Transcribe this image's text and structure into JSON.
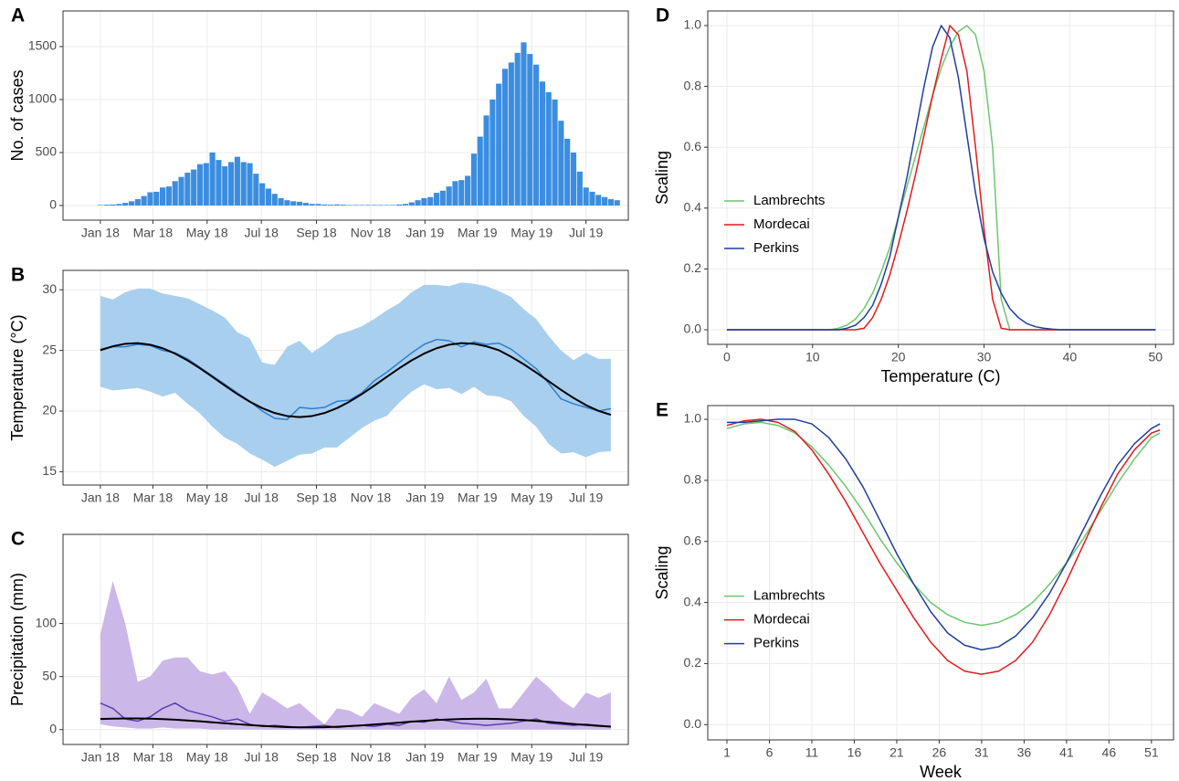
{
  "chart_data": [
    {
      "type": "bar",
      "label": "A",
      "ylabel": "No. of cases",
      "color": "#3b8de0",
      "grid": true,
      "x": [
        0,
        1,
        2,
        3,
        4,
        5,
        6,
        7,
        8,
        9,
        10,
        11,
        12,
        13,
        14,
        15,
        16,
        17,
        18,
        19,
        20,
        21,
        22,
        23,
        24,
        25,
        26,
        27,
        28,
        29,
        30,
        31,
        32,
        33,
        34,
        35,
        36,
        37,
        38,
        39,
        40,
        41,
        42,
        43,
        44,
        45,
        46,
        47,
        48,
        49,
        50,
        51,
        52,
        53,
        54,
        55,
        56,
        57,
        58,
        59,
        60,
        61,
        62,
        63,
        64,
        65,
        66,
        67,
        68,
        69,
        70,
        71,
        72,
        73,
        74,
        75,
        76,
        77,
        78,
        79,
        80,
        81,
        82,
        83
      ],
      "values": [
        5,
        8,
        10,
        15,
        25,
        40,
        60,
        90,
        125,
        130,
        170,
        180,
        230,
        270,
        310,
        340,
        390,
        400,
        500,
        430,
        370,
        410,
        460,
        410,
        400,
        300,
        210,
        160,
        110,
        70,
        50,
        40,
        35,
        25,
        15,
        15,
        10,
        8,
        10,
        8,
        5,
        5,
        5,
        5,
        5,
        5,
        5,
        5,
        10,
        15,
        30,
        50,
        70,
        80,
        120,
        140,
        180,
        230,
        240,
        280,
        490,
        650,
        850,
        1000,
        1150,
        1290,
        1350,
        1440,
        1540,
        1430,
        1330,
        1170,
        1070,
        1000,
        800,
        630,
        500,
        320,
        170,
        130,
        100,
        80,
        60,
        50
      ],
      "xlim": [
        -6,
        84.8
      ],
      "xticks": [
        {
          "value": 0,
          "label": "Jan 18"
        },
        {
          "value": 8.43,
          "label": "Mar 18"
        },
        {
          "value": 17.14,
          "label": "May 18"
        },
        {
          "value": 25.86,
          "label": "Jul 18"
        },
        {
          "value": 34.71,
          "label": "Sep 18"
        },
        {
          "value": 43.43,
          "label": "Nov 18"
        },
        {
          "value": 52.14,
          "label": "Jan 19"
        },
        {
          "value": 60.57,
          "label": "Mar 19"
        },
        {
          "value": 69.29,
          "label": "May 19"
        },
        {
          "value": 78,
          "label": "Jul 19"
        }
      ],
      "ylim": [
        -138,
        1836
      ],
      "yticks": [
        0,
        500,
        1000,
        1500
      ]
    },
    {
      "type": "line",
      "label": "B",
      "ylabel": "Temperature (°C)",
      "grid": true,
      "x": [
        0,
        2,
        4,
        6,
        8,
        10,
        12,
        14,
        16,
        18,
        20,
        22,
        24,
        26,
        28,
        30,
        32,
        34,
        36,
        38,
        40,
        42,
        44,
        46,
        48,
        50,
        52,
        54,
        56,
        58,
        60,
        62,
        64,
        66,
        68,
        70,
        72,
        74,
        76,
        78,
        80,
        82
      ],
      "band": {
        "color": "#a9cfef",
        "upper": [
          29.5,
          29.2,
          29.8,
          30.1,
          30.1,
          29.7,
          29.5,
          29.3,
          28.8,
          28.3,
          27.7,
          26.5,
          26.0,
          24.0,
          23.8,
          25.3,
          25.8,
          24.8,
          25.5,
          26.3,
          26.6,
          27.0,
          27.6,
          28.3,
          28.9,
          29.8,
          30.4,
          30.4,
          30.3,
          30.6,
          30.5,
          30.3,
          29.9,
          29.4,
          28.4,
          27.6,
          26.2,
          25.0,
          24.2,
          24.8,
          24.3,
          24.3
        ],
        "lower": [
          22.0,
          21.7,
          21.8,
          21.9,
          21.6,
          21.2,
          21.5,
          20.6,
          19.8,
          18.7,
          17.8,
          17.3,
          16.5,
          16.0,
          15.4,
          15.9,
          16.4,
          16.5,
          17.0,
          17.0,
          17.8,
          18.6,
          19.2,
          19.6,
          20.7,
          21.6,
          22.2,
          21.8,
          21.9,
          21.4,
          22.0,
          21.3,
          21.2,
          20.8,
          19.6,
          18.7,
          17.3,
          16.5,
          16.6,
          16.2,
          16.6,
          16.7
        ]
      },
      "series": [
        {
          "color": "#2f7fd0",
          "values": [
            25.1,
            25.3,
            25.3,
            25.5,
            25.4,
            25.0,
            24.8,
            24.3,
            23.6,
            22.9,
            22.2,
            21.5,
            20.8,
            20.0,
            19.4,
            19.3,
            20.3,
            20.2,
            20.3,
            20.8,
            20.9,
            21.5,
            22.5,
            23.2,
            24.0,
            24.8,
            25.5,
            25.9,
            25.8,
            25.3,
            25.7,
            25.5,
            25.6,
            25.1,
            24.3,
            23.5,
            22.3,
            21.0,
            20.6,
            20.3,
            20.0,
            20.2
          ]
        },
        {
          "color": "#000000",
          "values": [
            25.02,
            25.34,
            25.55,
            25.6,
            25.47,
            25.18,
            24.74,
            24.18,
            23.53,
            22.82,
            22.1,
            21.4,
            20.77,
            20.24,
            19.84,
            19.59,
            19.5,
            19.59,
            19.84,
            20.24,
            20.77,
            21.4,
            22.1,
            22.82,
            23.53,
            24.18,
            24.74,
            25.18,
            25.47,
            25.6,
            25.55,
            25.34,
            25.02,
            24.47,
            23.86,
            23.18,
            22.46,
            21.75,
            21.08,
            20.49,
            20.02,
            19.69
          ]
        }
      ],
      "xlim": [
        -6,
        84.8
      ],
      "xticks": [
        {
          "value": 0,
          "label": "Jan 18"
        },
        {
          "value": 8.43,
          "label": "Mar 18"
        },
        {
          "value": 17.14,
          "label": "May 18"
        },
        {
          "value": 25.86,
          "label": "Jul 18"
        },
        {
          "value": 34.71,
          "label": "Sep 18"
        },
        {
          "value": 43.43,
          "label": "Nov 18"
        },
        {
          "value": 52.14,
          "label": "Jan 19"
        },
        {
          "value": 60.57,
          "label": "Mar 19"
        },
        {
          "value": 69.29,
          "label": "May 19"
        },
        {
          "value": 78,
          "label": "Jul 19"
        }
      ],
      "ylim": [
        13.9,
        31.6
      ],
      "yticks": [
        15,
        20,
        25,
        30
      ]
    },
    {
      "type": "line",
      "label": "C",
      "ylabel": "Precipitation (mm)",
      "grid": true,
      "x": [
        0,
        2,
        4,
        6,
        8,
        10,
        12,
        14,
        16,
        18,
        20,
        22,
        24,
        26,
        28,
        30,
        32,
        34,
        36,
        38,
        40,
        42,
        44,
        46,
        48,
        50,
        52,
        54,
        56,
        58,
        60,
        62,
        64,
        66,
        68,
        70,
        72,
        74,
        76,
        78,
        80,
        82
      ],
      "band": {
        "color": "#cbb8e8",
        "upper": [
          90,
          140,
          100,
          45,
          50,
          65,
          68,
          68,
          55,
          52,
          55,
          40,
          15,
          35,
          28,
          20,
          25,
          15,
          5,
          20,
          18,
          12,
          25,
          20,
          15,
          30,
          38,
          25,
          50,
          28,
          35,
          48,
          20,
          20,
          35,
          50,
          40,
          28,
          20,
          35,
          30,
          35
        ],
        "lower": [
          5,
          3,
          2,
          1,
          1,
          2,
          1,
          1,
          1,
          0,
          0,
          0,
          0,
          0,
          0,
          0,
          0,
          0,
          0,
          0,
          0,
          0,
          0,
          0,
          0,
          0,
          0,
          0,
          0,
          0,
          0,
          0,
          0,
          0,
          0,
          0,
          0,
          0,
          0,
          0,
          0,
          0
        ]
      },
      "series": [
        {
          "color": "#5a3fb0",
          "values": [
            25,
            20,
            10,
            8,
            12,
            20,
            25,
            18,
            15,
            12,
            8,
            10,
            5,
            3,
            4,
            3,
            2,
            3,
            4,
            2,
            3,
            4,
            3,
            5,
            4,
            8,
            7,
            10,
            8,
            6,
            5,
            4,
            5,
            6,
            8,
            10,
            6,
            5,
            4,
            5,
            4,
            3
          ]
        },
        {
          "color": "#000000",
          "values": [
            10.0,
            10.3,
            10.5,
            10.5,
            10.3,
            9.9,
            9.3,
            8.6,
            7.8,
            6.9,
            6.0,
            5.1,
            4.3,
            3.5,
            2.9,
            2.4,
            2.1,
            2.1,
            2.3,
            2.7,
            3.3,
            4.0,
            4.8,
            5.7,
            6.6,
            7.5,
            8.3,
            9.0,
            9.6,
            10.0,
            10.2,
            10.2,
            10.0,
            9.6,
            9.0,
            8.2,
            7.3,
            6.3,
            5.3,
            4.4,
            3.5,
            2.8
          ]
        }
      ],
      "xlim": [
        -6,
        84.8
      ],
      "xticks": [
        {
          "value": 0,
          "label": "Jan 18"
        },
        {
          "value": 8.43,
          "label": "Mar 18"
        },
        {
          "value": 17.14,
          "label": "May 18"
        },
        {
          "value": 25.86,
          "label": "Jul 18"
        },
        {
          "value": 34.71,
          "label": "Sep 18"
        },
        {
          "value": 43.43,
          "label": "Nov 18"
        },
        {
          "value": 52.14,
          "label": "Jan 19"
        },
        {
          "value": 60.57,
          "label": "Mar 19"
        },
        {
          "value": 69.29,
          "label": "May 19"
        },
        {
          "value": 78,
          "label": "Jul 19"
        }
      ],
      "ylim": [
        -14,
        184
      ],
      "yticks": [
        0,
        50,
        100
      ]
    },
    {
      "type": "line",
      "label": "D",
      "xlabel": "Temperature (C)",
      "ylabel": "Scaling",
      "grid": true,
      "legend": "center left",
      "x": [
        0,
        1,
        2,
        3,
        4,
        5,
        6,
        7,
        8,
        9,
        10,
        11,
        12,
        13,
        14,
        15,
        16,
        17,
        18,
        19,
        20,
        21,
        22,
        23,
        24,
        25,
        26,
        27,
        28,
        29,
        30,
        31,
        32,
        33,
        34,
        35,
        36,
        37,
        38,
        39,
        40,
        41,
        42,
        43,
        44,
        45,
        46,
        47,
        48,
        49,
        50
      ],
      "series": [
        {
          "name": "Lambrechts",
          "color": "#6cc76c",
          "values": [
            0,
            0,
            0,
            0,
            0,
            0,
            0,
            0,
            0,
            0,
            0,
            0,
            0,
            0.005,
            0.015,
            0.035,
            0.07,
            0.12,
            0.19,
            0.27,
            0.37,
            0.47,
            0.57,
            0.67,
            0.77,
            0.86,
            0.93,
            0.98,
            1,
            0.97,
            0.85,
            0.6,
            0.1,
            0,
            0,
            0,
            0,
            0,
            0,
            0,
            0,
            0,
            0,
            0,
            0,
            0,
            0,
            0,
            0,
            0,
            0
          ]
        },
        {
          "name": "Mordecai",
          "color": "#e31a1c",
          "values": [
            0,
            0,
            0,
            0,
            0,
            0,
            0,
            0,
            0,
            0,
            0,
            0,
            0,
            0,
            0,
            0,
            0.005,
            0.04,
            0.1,
            0.18,
            0.28,
            0.39,
            0.51,
            0.64,
            0.77,
            0.89,
            1,
            0.97,
            0.85,
            0.6,
            0.33,
            0.1,
            0.005,
            0,
            0,
            0,
            0,
            0,
            0,
            0,
            0,
            0,
            0,
            0,
            0,
            0,
            0,
            0,
            0,
            0,
            0
          ]
        },
        {
          "name": "Perkins",
          "color": "#1f3f9e",
          "values": [
            0,
            0,
            0,
            0,
            0,
            0,
            0,
            0,
            0,
            0,
            0,
            0,
            0,
            0,
            0.005,
            0.015,
            0.04,
            0.08,
            0.15,
            0.24,
            0.37,
            0.5,
            0.65,
            0.8,
            0.93,
            1,
            0.96,
            0.83,
            0.64,
            0.45,
            0.3,
            0.19,
            0.12,
            0.07,
            0.04,
            0.02,
            0.01,
            0.005,
            0.002,
            0,
            0,
            0,
            0,
            0,
            0,
            0,
            0,
            0,
            0,
            0,
            0
          ]
        }
      ],
      "xlim": [
        -2.23,
        52.1
      ],
      "xticks": [
        0,
        10,
        20,
        30,
        40,
        50
      ],
      "ylim": [
        -0.048,
        1.048
      ],
      "yticks": [
        {
          "value": 0,
          "label": "0.0"
        },
        0.2,
        0.4,
        0.6,
        0.8,
        {
          "value": 1,
          "label": "1.0"
        }
      ]
    },
    {
      "type": "line",
      "label": "E",
      "xlabel": "Week",
      "ylabel": "Scaling",
      "grid": true,
      "legend": "center left",
      "x": [
        1,
        3,
        5,
        7,
        9,
        11,
        13,
        15,
        17,
        19,
        21,
        23,
        25,
        27,
        29,
        31,
        33,
        35,
        37,
        39,
        41,
        43,
        45,
        47,
        49,
        51,
        52
      ],
      "series": [
        {
          "name": "Lambrechts",
          "color": "#6cc76c",
          "values": [
            0.97,
            0.985,
            0.99,
            0.98,
            0.955,
            0.91,
            0.85,
            0.78,
            0.7,
            0.61,
            0.53,
            0.46,
            0.4,
            0.36,
            0.335,
            0.325,
            0.335,
            0.36,
            0.4,
            0.46,
            0.53,
            0.61,
            0.7,
            0.79,
            0.87,
            0.94,
            0.955
          ]
        },
        {
          "name": "Mordecai",
          "color": "#e31a1c",
          "values": [
            0.98,
            0.995,
            1,
            0.99,
            0.96,
            0.9,
            0.82,
            0.73,
            0.63,
            0.53,
            0.44,
            0.35,
            0.27,
            0.21,
            0.175,
            0.165,
            0.175,
            0.21,
            0.27,
            0.36,
            0.47,
            0.59,
            0.71,
            0.82,
            0.9,
            0.955,
            0.965
          ]
        },
        {
          "name": "Perkins",
          "color": "#1f3f9e",
          "values": [
            0.99,
            0.99,
            0.995,
            1,
            1,
            0.985,
            0.94,
            0.87,
            0.78,
            0.67,
            0.56,
            0.46,
            0.37,
            0.3,
            0.26,
            0.245,
            0.255,
            0.29,
            0.35,
            0.43,
            0.53,
            0.64,
            0.75,
            0.85,
            0.92,
            0.97,
            0.985
          ]
        }
      ],
      "xlim": [
        -1.26,
        53.6
      ],
      "xticks": [
        1,
        6,
        11,
        16,
        21,
        26,
        31,
        36,
        41,
        46,
        51
      ],
      "ylim": [
        -0.05,
        1.045
      ],
      "yticks": [
        {
          "value": 0,
          "label": "0.0"
        },
        0.2,
        0.4,
        0.6,
        0.8,
        {
          "value": 1,
          "label": "1.0"
        }
      ]
    }
  ]
}
